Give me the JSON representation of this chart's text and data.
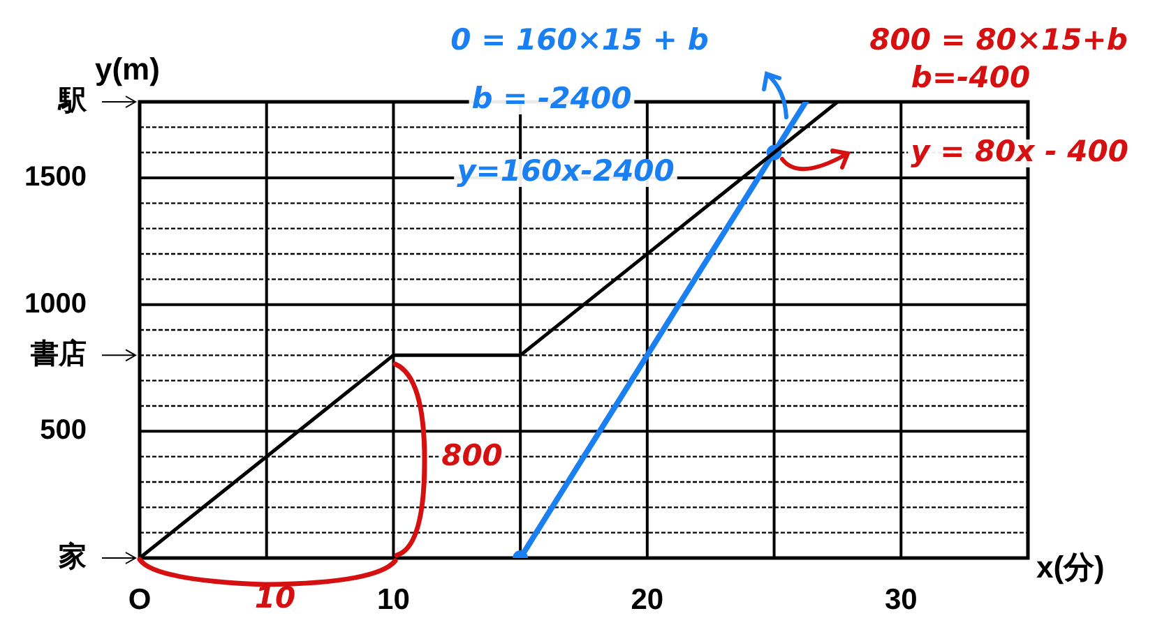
{
  "chart_data": {
    "type": "line",
    "xlabel": "x(分)",
    "ylabel": "y(m)",
    "xlim": [
      0,
      35
    ],
    "xticks": [
      {
        "value": 0,
        "label": "O"
      },
      {
        "value": 5,
        "label": null
      },
      10,
      {
        "value": 15,
        "label": null
      },
      20,
      {
        "value": 25,
        "label": null
      },
      30,
      {
        "value": 35,
        "label": null
      }
    ],
    "ylim": [
      0,
      1800
    ],
    "yticks": [
      {
        "value": 0,
        "label": "家"
      },
      {
        "value": 100,
        "label": null
      },
      {
        "value": 200,
        "label": null
      },
      {
        "value": 300,
        "label": null
      },
      {
        "value": 400,
        "label": null
      },
      500,
      {
        "value": 600,
        "label": null
      },
      {
        "value": 700,
        "label": null
      },
      {
        "value": 800,
        "label": "書店"
      },
      {
        "value": 900,
        "label": null
      },
      1000,
      {
        "value": 1100,
        "label": null
      },
      {
        "value": 1200,
        "label": null
      },
      {
        "value": 1300,
        "label": null
      },
      {
        "value": 1400,
        "label": null
      },
      1500,
      {
        "value": 1600,
        "label": null
      },
      {
        "value": 1700,
        "label": null
      },
      {
        "value": 1800,
        "label": "駅"
      }
    ],
    "grid": true,
    "legend": false,
    "series": [
      {
        "color": "#000000",
        "x": [
          0,
          10,
          15,
          27.5
        ],
        "values": [
          0,
          800,
          800,
          1800
        ],
        "marker": "none",
        "line_style": "solid"
      },
      {
        "color": "#1a7ff0",
        "x": [
          15,
          25,
          26.25
        ],
        "values": [
          0,
          1600,
          1800
        ],
        "marker": "none",
        "line_style": "solid"
      },
      {
        "type": "scatter",
        "color": "#1a7ff0",
        "x": [
          15,
          25
        ],
        "values": [
          0,
          1600
        ],
        "marker": "circle"
      }
    ],
    "annotations": [
      "0 = 160×15 + b",
      "b = -2400",
      "y=160x-2400",
      "800 = 80×15+b",
      "b=-400",
      "y = 80x - 400",
      "800",
      "10"
    ]
  }
}
